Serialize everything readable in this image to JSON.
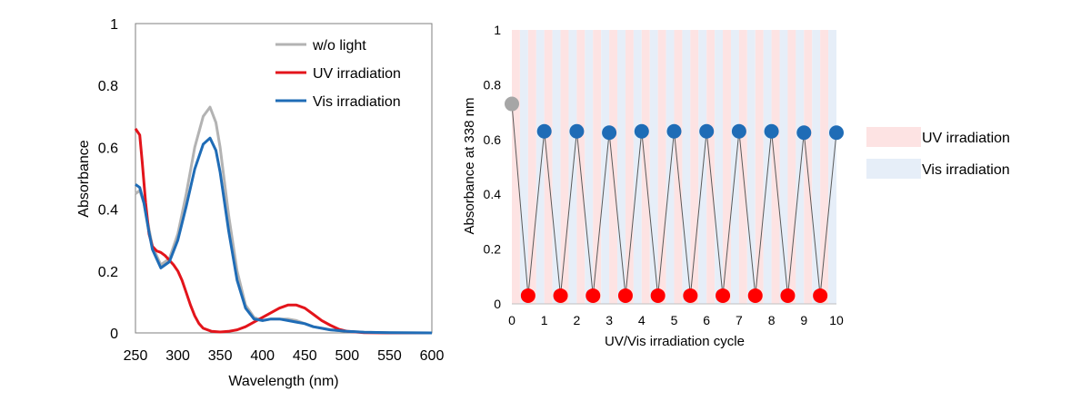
{
  "chart_data": [
    {
      "type": "line",
      "xlabel": "Wavelength (nm)",
      "ylabel": "Absorbance",
      "xlim": [
        250,
        600
      ],
      "ylim": [
        0,
        1
      ],
      "xticks": [
        "250",
        "300",
        "350",
        "400",
        "450",
        "500",
        "550",
        "600"
      ],
      "yticks": [
        "0",
        "0.2",
        "0.4",
        "0.6",
        "0.8",
        "1"
      ],
      "legend_position": "top-right",
      "series": [
        {
          "name": "w/o light",
          "color": "#b3b3b3",
          "x": [
            250,
            255,
            260,
            265,
            270,
            280,
            290,
            300,
            310,
            320,
            330,
            338,
            345,
            350,
            360,
            370,
            380,
            390,
            400,
            410,
            420,
            430,
            440,
            450,
            460,
            470,
            480,
            500,
            520,
            550,
            600
          ],
          "y": [
            0.45,
            0.46,
            0.42,
            0.35,
            0.28,
            0.22,
            0.24,
            0.32,
            0.45,
            0.6,
            0.7,
            0.73,
            0.68,
            0.6,
            0.38,
            0.2,
            0.09,
            0.05,
            0.04,
            0.045,
            0.045,
            0.045,
            0.04,
            0.03,
            0.02,
            0.015,
            0.01,
            0.005,
            0.002,
            0.001,
            0
          ]
        },
        {
          "name": "UV irradiation",
          "color": "#e3141b",
          "x": [
            250,
            255,
            258,
            262,
            266,
            270,
            275,
            280,
            285,
            290,
            295,
            300,
            305,
            310,
            315,
            320,
            325,
            330,
            340,
            350,
            360,
            370,
            380,
            390,
            400,
            410,
            420,
            430,
            440,
            450,
            460,
            470,
            480,
            490,
            500,
            520,
            550,
            600
          ],
          "y": [
            0.66,
            0.64,
            0.55,
            0.42,
            0.32,
            0.28,
            0.265,
            0.26,
            0.25,
            0.235,
            0.22,
            0.2,
            0.17,
            0.13,
            0.09,
            0.055,
            0.03,
            0.015,
            0.005,
            0.003,
            0.005,
            0.01,
            0.02,
            0.035,
            0.05,
            0.065,
            0.08,
            0.09,
            0.09,
            0.08,
            0.06,
            0.04,
            0.025,
            0.012,
            0.005,
            0.001,
            0,
            0
          ]
        },
        {
          "name": "Vis irradiation",
          "color": "#1f6cb6",
          "x": [
            250,
            255,
            260,
            265,
            270,
            280,
            290,
            300,
            310,
            320,
            330,
            338,
            345,
            350,
            360,
            370,
            380,
            390,
            400,
            410,
            420,
            430,
            440,
            450,
            460,
            470,
            480,
            500,
            520,
            550,
            600
          ],
          "y": [
            0.48,
            0.47,
            0.42,
            0.34,
            0.27,
            0.21,
            0.23,
            0.3,
            0.41,
            0.53,
            0.61,
            0.63,
            0.59,
            0.52,
            0.33,
            0.17,
            0.08,
            0.045,
            0.04,
            0.045,
            0.045,
            0.04,
            0.035,
            0.03,
            0.02,
            0.015,
            0.01,
            0.005,
            0.002,
            0.001,
            0
          ]
        }
      ]
    },
    {
      "type": "scatter",
      "xlabel": "UV/Vis irradiation cycle",
      "ylabel": "Absorbance at 338 nm",
      "xlim": [
        0,
        10
      ],
      "ylim": [
        0,
        1
      ],
      "xticks": [
        "0",
        "1",
        "2",
        "3",
        "4",
        "5",
        "6",
        "7",
        "8",
        "9",
        "10"
      ],
      "yticks": [
        "0",
        "0.2",
        "0.4",
        "0.6",
        "0.8",
        "1"
      ],
      "legend_position": "right",
      "band_colors": {
        "uv": "#fde3e3",
        "vis": "#e6eef8"
      },
      "legend": [
        {
          "label": "UV irradiation",
          "color": "#fde3e3"
        },
        {
          "label": "Vis irradiation",
          "color": "#e6eef8"
        }
      ],
      "initial_point": {
        "x": 0,
        "y": 0.73,
        "color": "#a6a6a6"
      },
      "uv_points": {
        "color": "#ff0000",
        "x": [
          0.5,
          1.5,
          2.5,
          3.5,
          4.5,
          5.5,
          6.5,
          7.5,
          8.5,
          9.5
        ],
        "y": [
          0.03,
          0.03,
          0.03,
          0.03,
          0.03,
          0.03,
          0.03,
          0.03,
          0.03,
          0.03
        ]
      },
      "vis_points": {
        "color": "#1f6cb6",
        "x": [
          1,
          2,
          3,
          4,
          5,
          6,
          7,
          8,
          9,
          10
        ],
        "y": [
          0.63,
          0.63,
          0.625,
          0.63,
          0.63,
          0.63,
          0.63,
          0.63,
          0.625,
          0.625
        ]
      }
    }
  ]
}
